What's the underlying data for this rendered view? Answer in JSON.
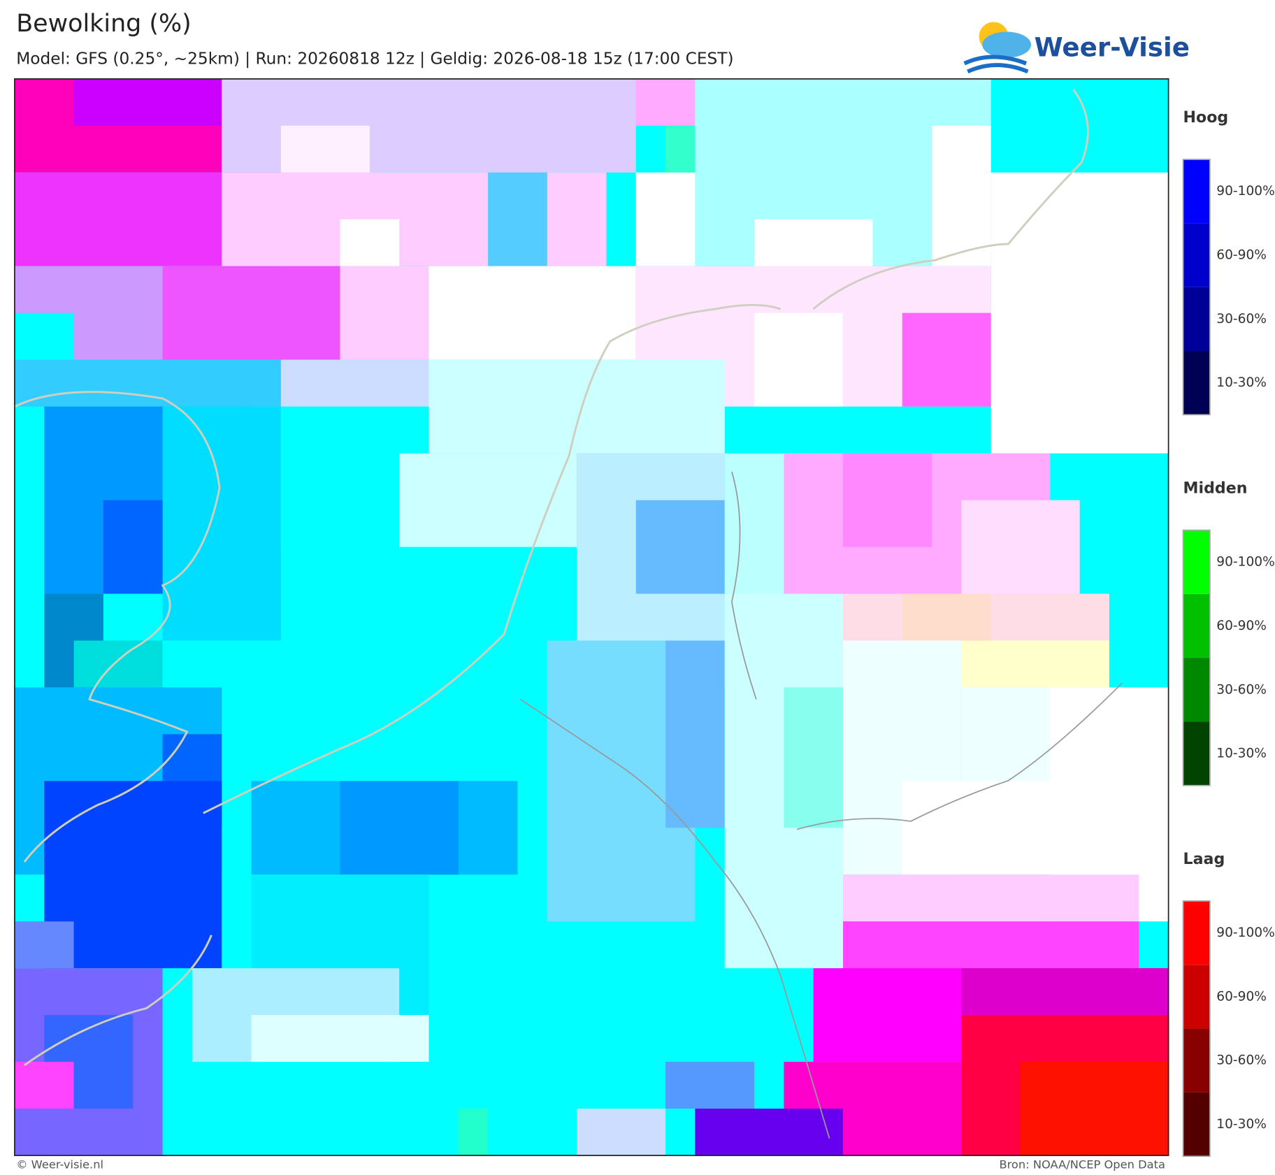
{
  "header": {
    "title": "Bewolking (%)",
    "subtitle": "Model: GFS (0.25°, ~25km)  |  Run: 20260818 12z  |  Geldig: 2026-08-18 15z (17:00 CEST)",
    "logo": "Weer-Visie"
  },
  "legend": [
    {
      "title": "Hoog",
      "items": [
        {
          "label": "90-100%",
          "color": "#0000ff"
        },
        {
          "label": "60-90%",
          "color": "#0000cc"
        },
        {
          "label": "30-60%",
          "color": "#000099"
        },
        {
          "label": "10-30%",
          "color": "#000055"
        }
      ]
    },
    {
      "title": "Midden",
      "items": [
        {
          "label": "90-100%",
          "color": "#00ff00"
        },
        {
          "label": "60-90%",
          "color": "#00c000"
        },
        {
          "label": "30-60%",
          "color": "#008800"
        },
        {
          "label": "10-30%",
          "color": "#004400"
        }
      ]
    },
    {
      "title": "Laag",
      "items": [
        {
          "label": "90-100%",
          "color": "#ff0000"
        },
        {
          "label": "60-90%",
          "color": "#cc0000"
        },
        {
          "label": "30-60%",
          "color": "#880000"
        },
        {
          "label": "10-30%",
          "color": "#550000"
        }
      ]
    }
  ],
  "footer": {
    "left": "© Weer-visie.nl",
    "right": "Bron: NOAA/NCEP Open Data"
  }
}
